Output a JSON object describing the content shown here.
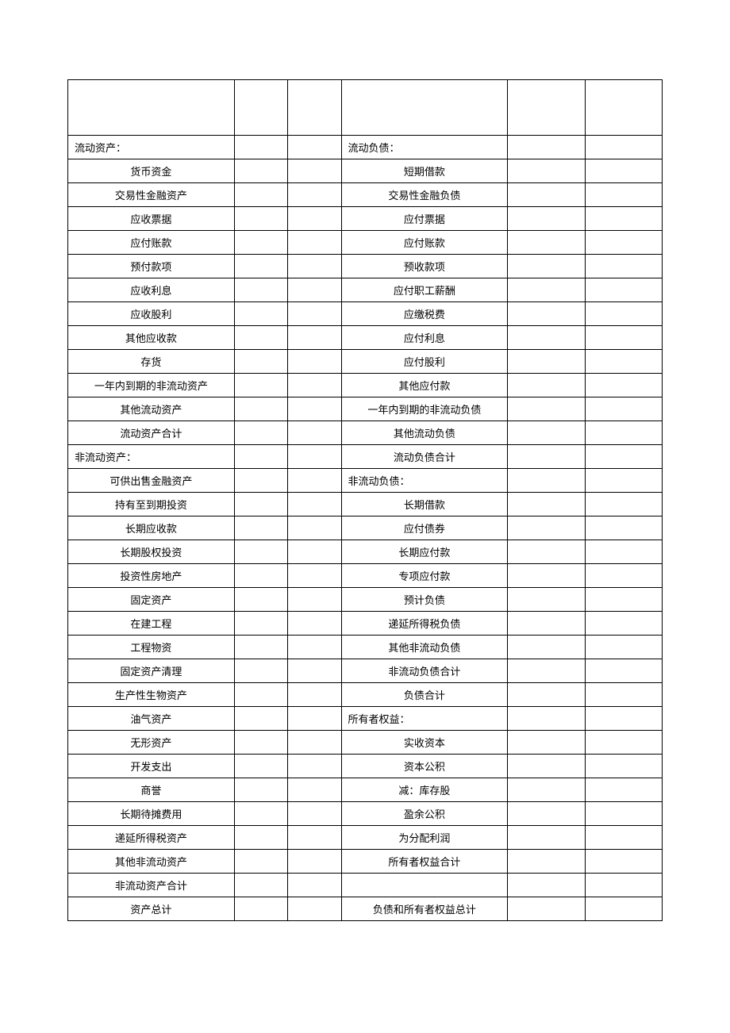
{
  "table": {
    "rows": [
      {
        "left": "",
        "right": "",
        "leftAlign": "center",
        "rightAlign": "center",
        "header": true
      },
      {
        "left": "流动资产：",
        "right": "流动负债：",
        "leftAlign": "left",
        "rightAlign": "left"
      },
      {
        "left": "货币资金",
        "right": "短期借款",
        "leftAlign": "center",
        "rightAlign": "center"
      },
      {
        "left": "交易性金融资产",
        "right": "交易性金融负债",
        "leftAlign": "center",
        "rightAlign": "center"
      },
      {
        "left": "应收票据",
        "right": "应付票据",
        "leftAlign": "center",
        "rightAlign": "center"
      },
      {
        "left": "应付账款",
        "right": "应付账款",
        "leftAlign": "center",
        "rightAlign": "center"
      },
      {
        "left": "预付款项",
        "right": "预收款项",
        "leftAlign": "center",
        "rightAlign": "center"
      },
      {
        "left": "应收利息",
        "right": "应付职工薪酬",
        "leftAlign": "center",
        "rightAlign": "center"
      },
      {
        "left": "应收股利",
        "right": "应缴税费",
        "leftAlign": "center",
        "rightAlign": "center"
      },
      {
        "left": "其他应收款",
        "right": "应付利息",
        "leftAlign": "center",
        "rightAlign": "center"
      },
      {
        "left": "存货",
        "right": "应付股利",
        "leftAlign": "center",
        "rightAlign": "center"
      },
      {
        "left": "一年内到期的非流动资产",
        "right": "其他应付款",
        "leftAlign": "center",
        "rightAlign": "center"
      },
      {
        "left": "其他流动资产",
        "right": "一年内到期的非流动负债",
        "leftAlign": "center",
        "rightAlign": "center"
      },
      {
        "left": "流动资产合计",
        "right": "其他流动负债",
        "leftAlign": "center",
        "rightAlign": "center"
      },
      {
        "left": "非流动资产：",
        "right": "流动负债合计",
        "leftAlign": "left",
        "rightAlign": "center"
      },
      {
        "left": "可供出售金融资产",
        "right": "非流动负债：",
        "leftAlign": "center",
        "rightAlign": "left"
      },
      {
        "left": "持有至到期投资",
        "right": "长期借款",
        "leftAlign": "center",
        "rightAlign": "center"
      },
      {
        "left": "长期应收款",
        "right": "应付债券",
        "leftAlign": "center",
        "rightAlign": "center"
      },
      {
        "left": "长期股权投资",
        "right": "长期应付款",
        "leftAlign": "center",
        "rightAlign": "center"
      },
      {
        "left": "投资性房地产",
        "right": "专项应付款",
        "leftAlign": "center",
        "rightAlign": "center"
      },
      {
        "left": "固定资产",
        "right": "预计负债",
        "leftAlign": "center",
        "rightAlign": "center"
      },
      {
        "left": "在建工程",
        "right": "递延所得税负债",
        "leftAlign": "center",
        "rightAlign": "center"
      },
      {
        "left": "工程物资",
        "right": "其他非流动负债",
        "leftAlign": "center",
        "rightAlign": "center"
      },
      {
        "left": "固定资产清理",
        "right": "非流动负债合计",
        "leftAlign": "center",
        "rightAlign": "center"
      },
      {
        "left": "生产性生物资产",
        "right": "负债合计",
        "leftAlign": "center",
        "rightAlign": "center"
      },
      {
        "left": "油气资产",
        "right": "所有者权益：",
        "leftAlign": "center",
        "rightAlign": "left"
      },
      {
        "left": "无形资产",
        "right": "实收资本",
        "leftAlign": "center",
        "rightAlign": "center"
      },
      {
        "left": "开发支出",
        "right": "资本公积",
        "leftAlign": "center",
        "rightAlign": "center"
      },
      {
        "left": "商誉",
        "right": "减：库存股",
        "leftAlign": "center",
        "rightAlign": "center"
      },
      {
        "left": "长期待摊费用",
        "right": "盈余公积",
        "leftAlign": "center",
        "rightAlign": "center"
      },
      {
        "left": "递延所得税资产",
        "right": "为分配利润",
        "leftAlign": "center",
        "rightAlign": "center"
      },
      {
        "left": "其他非流动资产",
        "right": "所有者权益合计",
        "leftAlign": "center",
        "rightAlign": "center"
      },
      {
        "left": "非流动资产合计",
        "right": "",
        "leftAlign": "center",
        "rightAlign": "center"
      },
      {
        "left": "资产总计",
        "right": "负债和所有者权益总计",
        "leftAlign": "center",
        "rightAlign": "center"
      }
    ]
  }
}
